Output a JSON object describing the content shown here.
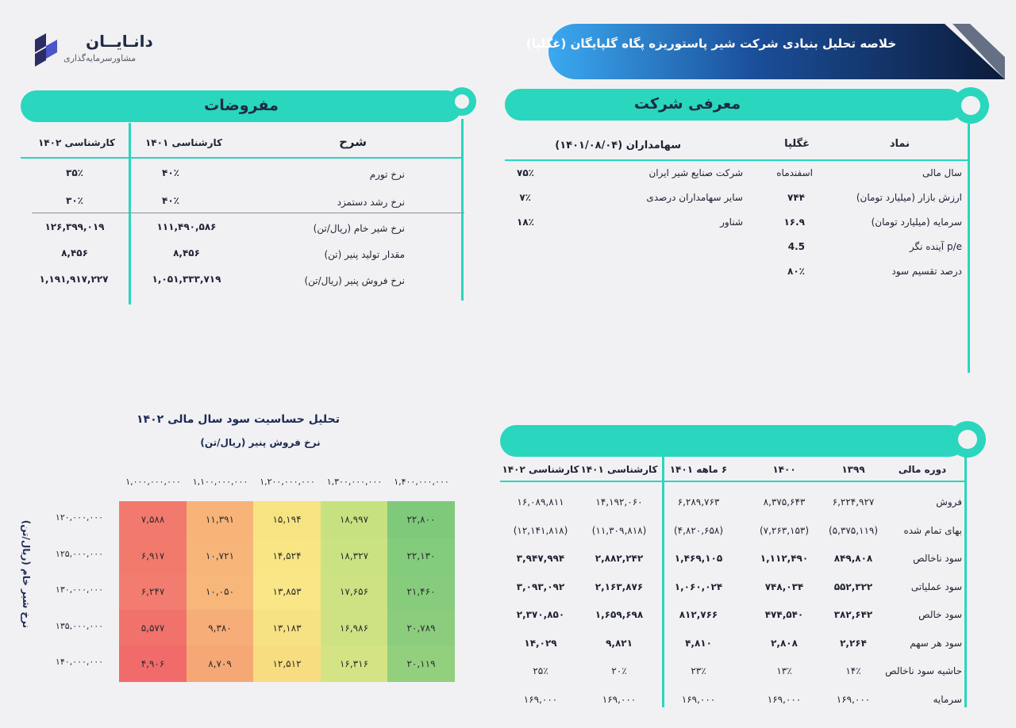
{
  "logo": {
    "title": "دانـایــان",
    "subtitle": "مشاورسرمایه‌گذاری"
  },
  "banner": {
    "title": "خلاصه تحلیل بنیادی شرکت شیر پاستوریزه پگاه گلپایگان (غگلپا)"
  },
  "company": {
    "header": "معرفی شرکت",
    "symbol_label": "نماد",
    "symbol_value": "غگلپا",
    "fields": [
      {
        "label": "سال مالی",
        "value": "اسفندماه"
      },
      {
        "label": "ارزش بازار (میلیارد تومان)",
        "value": "۷۴۴"
      },
      {
        "label": "سرمایه (میلیارد تومان)",
        "value": "۱۶.۹"
      },
      {
        "label": "p/e آینده نگر",
        "value": "4.5"
      },
      {
        "label": "درصد تقسیم سود",
        "value": "۸۰٪"
      }
    ],
    "shareholders_title": "سهامداران (۱۴۰۱/۰۸/۰۴)",
    "shareholders": [
      {
        "name": "شرکت صنایع شیر ایران",
        "pct": "۷۵٪"
      },
      {
        "name": "سایر سهامداران درصدی",
        "pct": "۷٪"
      },
      {
        "name": "شناور",
        "pct": "۱۸٪"
      }
    ]
  },
  "assumptions": {
    "header": "مفروضات",
    "columns": [
      "شرح",
      "کارشناسی ۱۴۰۱",
      "کارشناسی ۱۴۰۲"
    ],
    "rows": [
      {
        "label": "نرخ تورم",
        "v1401": "۴۰٪",
        "v1402": "۳۵٪"
      },
      {
        "label": "نرخ رشد دستمزد",
        "v1401": "۴۰٪",
        "v1402": "۳۰٪"
      },
      {
        "label": "نرخ شیر خام (ریال/تن)",
        "v1401": "۱۱۱,۴۹۰,۵۸۶",
        "v1402": "۱۲۶,۳۹۹,۰۱۹"
      },
      {
        "label": "مقدار تولید پنیر (تن)",
        "v1401": "۸,۴۵۶",
        "v1402": "۸,۴۵۶"
      },
      {
        "label": "نرخ فروش پنیر (ریال/تن)",
        "v1401": "۱,۰۵۱,۳۳۳,۷۱۹",
        "v1402": "۱,۱۹۱,۹۱۷,۲۲۷"
      }
    ]
  },
  "financials": {
    "columns": [
      "دوره مالی",
      "۱۳۹۹",
      "۱۴۰۰",
      "۶ ماهه ۱۴۰۱",
      "کارشناسی ۱۴۰۱",
      "کارشناسی ۱۴۰۲"
    ],
    "rows": [
      {
        "label": "فروش",
        "values": [
          "۶,۲۲۴,۹۲۷",
          "۸,۳۷۵,۶۴۳",
          "۶,۲۸۹,۷۶۳",
          "۱۴,۱۹۲,۰۶۰",
          "۱۶,۰۸۹,۸۱۱"
        ]
      },
      {
        "label": "بهای تمام شده",
        "values": [
          "(۵,۳۷۵,۱۱۹)",
          "(۷,۲۶۳,۱۵۳)",
          "(۴,۸۲۰,۶۵۸)",
          "(۱۱,۳۰۹,۸۱۸)",
          "(۱۲,۱۴۱,۸۱۸)"
        ]
      },
      {
        "label": "سود ناخالص",
        "values": [
          "۸۴۹,۸۰۸",
          "۱,۱۱۲,۴۹۰",
          "۱,۴۶۹,۱۰۵",
          "۲,۸۸۲,۲۴۲",
          "۳,۹۴۷,۹۹۴"
        ]
      },
      {
        "label": "سود عملیاتی",
        "values": [
          "۵۵۲,۳۲۲",
          "۷۴۸,۰۳۴",
          "۱,۰۶۰,۰۲۴",
          "۲,۱۶۳,۸۷۶",
          "۳,۰۹۳,۰۹۲"
        ]
      },
      {
        "label": "سود خالص",
        "values": [
          "۳۸۲,۶۴۲",
          "۴۷۴,۵۴۰",
          "۸۱۲,۷۶۶",
          "۱,۶۵۹,۶۹۸",
          "۲,۳۷۰,۸۵۰"
        ]
      },
      {
        "label": "سود هر سهم",
        "values": [
          "۲,۲۶۴",
          "۲,۸۰۸",
          "۴,۸۱۰",
          "۹,۸۲۱",
          "۱۴,۰۲۹"
        ]
      },
      {
        "label": "حاشیه سود ناخالص",
        "values": [
          "۱۴٪",
          "۱۳٪",
          "۲۳٪",
          "۲۰٪",
          "۲۵٪"
        ]
      },
      {
        "label": "سرمایه",
        "values": [
          "۱۶۹,۰۰۰",
          "۱۶۹,۰۰۰",
          "۱۶۹,۰۰۰",
          "۱۶۹,۰۰۰",
          "۱۶۹,۰۰۰"
        ]
      }
    ]
  },
  "sensitivity": {
    "title": "تحلیل حساسیت سود سال مالی ۱۴۰۲",
    "subtitle": "نرخ فروش پنیر (ریال/تن)",
    "row_axis_label": "نرخ شیر خام (ریال/تن)",
    "columns": [
      "۱,۰۰۰,۰۰۰,۰۰۰",
      "۱,۱۰۰,۰۰۰,۰۰۰",
      "۱,۲۰۰,۰۰۰,۰۰۰",
      "۱,۳۰۰,۰۰۰,۰۰۰",
      "۱,۴۰۰,۰۰۰,۰۰۰"
    ],
    "rows": [
      "۱۲۰,۰۰۰,۰۰۰",
      "۱۲۵,۰۰۰,۰۰۰",
      "۱۳۰,۰۰۰,۰۰۰",
      "۱۳۵,۰۰۰,۰۰۰",
      "۱۴۰,۰۰۰,۰۰۰"
    ],
    "cells": [
      [
        "۷,۵۸۸",
        "۱۱,۳۹۱",
        "۱۵,۱۹۴",
        "۱۸,۹۹۷",
        "۲۲,۸۰۰"
      ],
      [
        "۶,۹۱۷",
        "۱۰,۷۲۱",
        "۱۴,۵۲۴",
        "۱۸,۳۲۷",
        "۲۲,۱۳۰"
      ],
      [
        "۶,۲۴۷",
        "۱۰,۰۵۰",
        "۱۳,۸۵۳",
        "۱۷,۶۵۶",
        "۲۱,۴۶۰"
      ],
      [
        "۵,۵۷۷",
        "۹,۳۸۰",
        "۱۳,۱۸۳",
        "۱۶,۹۸۶",
        "۲۰,۷۸۹"
      ],
      [
        "۴,۹۰۶",
        "۸,۷۰۹",
        "۱۲,۵۱۲",
        "۱۶,۳۱۶",
        "۲۰,۱۱۹"
      ]
    ],
    "colors": [
      [
        "#f2796d",
        "#f7b378",
        "#f6e483",
        "#c8e180",
        "#7ec97a"
      ],
      [
        "#f17a6c",
        "#f7b579",
        "#f8e684",
        "#cbe282",
        "#83cc7c"
      ],
      [
        "#f27c6f",
        "#f7b67a",
        "#f9e687",
        "#cde283",
        "#86cc7c"
      ],
      [
        "#f1716b",
        "#f6ad77",
        "#f7e283",
        "#cee284",
        "#8bcd7d"
      ],
      [
        "#f16b6a",
        "#f5a875",
        "#f7dd80",
        "#d4e485",
        "#93d07e"
      ]
    ]
  }
}
